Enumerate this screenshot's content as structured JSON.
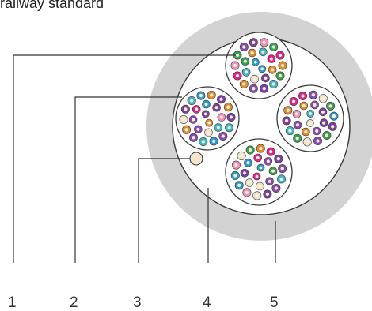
{
  "caption": "railway standard",
  "callouts": [
    {
      "id": "1",
      "label": "1"
    },
    {
      "id": "2",
      "label": "2"
    },
    {
      "id": "3",
      "label": "3"
    },
    {
      "id": "4",
      "label": "4"
    },
    {
      "id": "5",
      "label": "5"
    }
  ],
  "colors": {
    "jacket": "#d2d2d2",
    "core_fill": "#ffffff",
    "outline": "#3a3a3a",
    "fiber_palette": [
      "#e0218a",
      "#3cb8c6",
      "#7b3fa0",
      "#8a4bb0",
      "#e08a2a",
      "#3aa050",
      "#f0e6d0",
      "#f28fb8",
      "#2a9ad0"
    ]
  }
}
